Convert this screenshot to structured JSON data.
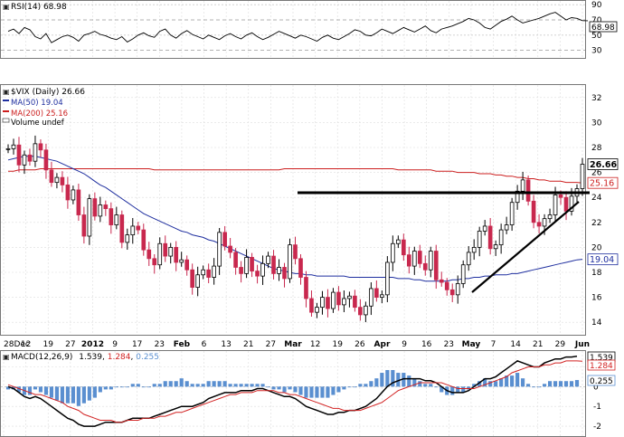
{
  "rsi": {
    "label": "RSI(14) 68.98",
    "last": 68.98,
    "ticks": [
      "90",
      "70",
      "50",
      "30"
    ],
    "tick_values": [
      90,
      70,
      50,
      30
    ],
    "last_badge": "68.98"
  },
  "price": {
    "legend_title": "$VIX (Daily) 26.66",
    "legend_ma50": "MA(50) 19.04",
    "legend_ma200": "MA(200) 25.16",
    "legend_volume": "Volume undef",
    "ticks": [
      "32",
      "30",
      "28",
      "26",
      "24",
      "22",
      "20",
      "18",
      "16",
      "14"
    ],
    "tick_values": [
      32,
      30,
      28,
      26,
      24,
      22,
      20,
      18,
      16,
      14
    ],
    "badges": [
      {
        "text": "26.66",
        "value": 26.66,
        "style": "last"
      },
      {
        "text": "25.16",
        "value": 25.16,
        "style": "ma200"
      },
      {
        "text": "19.04",
        "value": 19.04,
        "style": "ma50"
      }
    ]
  },
  "macd": {
    "label": "MACD(12,26,9)",
    "macd_value": "1.539",
    "signal_value": "1.284",
    "hist_value": "0.255",
    "ticks": [
      "1",
      "0",
      "-1",
      "-2"
    ],
    "tick_values": [
      1,
      0,
      -1,
      -2
    ],
    "badges": [
      {
        "text": "1.539",
        "value": 1.539
      },
      {
        "text": "1.284",
        "value": 1.284
      },
      {
        "text": "0.255",
        "value": 0.255
      }
    ]
  },
  "x_axis": {
    "labels": [
      "28Dec",
      "12",
      "19",
      "27",
      "2012",
      "9",
      "17",
      "23",
      "Feb",
      "6",
      "13",
      "21",
      "27",
      "Mar",
      "12",
      "19",
      "26",
      "Apr",
      "9",
      "16",
      "23",
      "May",
      "7",
      "14",
      "21",
      "29",
      "Jun"
    ],
    "bold": [
      "2012",
      "Feb",
      "Mar",
      "Apr",
      "May",
      "Jun"
    ]
  },
  "colors": {
    "up": "#000000",
    "down": "#c8284e",
    "ma50": "#1f2f9f",
    "ma200": "#cc1f1f",
    "hist": "#5a8fd0",
    "macd": "#000000",
    "signal": "#d22222",
    "grid": "#dddddd"
  },
  "chart_data": [
    {
      "type": "line",
      "title": "RSI(14) 68.98",
      "ylim": [
        20,
        95
      ],
      "series": [
        {
          "name": "RSI(14)",
          "values": [
            55,
            58,
            52,
            60,
            57,
            48,
            45,
            52,
            40,
            44,
            48,
            50,
            47,
            42,
            50,
            52,
            55,
            51,
            49,
            46,
            44,
            48,
            41,
            45,
            50,
            53,
            49,
            47,
            55,
            58,
            50,
            46,
            52,
            56,
            51,
            48,
            45,
            50,
            47,
            44,
            49,
            52,
            48,
            45,
            50,
            53,
            48,
            44,
            47,
            51,
            55,
            52,
            49,
            46,
            50,
            48,
            45,
            42,
            47,
            50,
            46,
            44,
            48,
            52,
            57,
            55,
            50,
            49,
            53,
            58,
            55,
            52,
            56,
            60,
            57,
            54,
            58,
            62,
            56,
            53,
            58,
            60,
            62,
            65,
            68,
            72,
            70,
            66,
            60,
            58,
            63,
            68,
            71,
            75,
            70,
            66,
            68,
            70,
            72,
            75,
            78,
            80,
            75,
            70,
            73,
            72,
            69,
            68.98
          ]
        }
      ]
    },
    {
      "type": "line",
      "title": "$VIX (Daily) 26.66",
      "ylim": [
        13,
        33
      ],
      "series": [
        {
          "name": "$VIX (Daily)",
          "values": [
            27.9,
            28.2,
            26.6,
            27.4,
            26.9,
            28.3,
            27.8,
            26.2,
            25.2,
            25.6,
            25.0,
            23.8,
            24.6,
            22.6,
            20.9,
            23.9,
            22.5,
            23.4,
            23.1,
            21.8,
            22.6,
            20.4,
            21.0,
            21.7,
            21.4,
            19.8,
            19.1,
            18.6,
            20.3,
            19.3,
            20.0,
            18.8,
            19.0,
            18.2,
            16.8,
            17.8,
            18.2,
            17.6,
            18.5,
            21.2,
            20.1,
            19.6,
            18.4,
            17.9,
            19.2,
            18.1,
            17.7,
            18.7,
            19.3,
            17.9,
            18.4,
            17.5,
            20.2,
            19.1,
            17.6,
            15.9,
            14.8,
            15.2,
            16.0,
            15.1,
            16.4,
            15.4,
            15.9,
            16.1,
            15.2,
            14.6,
            15.3,
            16.7,
            16.0,
            16.2,
            18.8,
            20.3,
            20.6,
            19.4,
            18.5,
            19.7,
            18.7,
            18.2,
            19.7,
            17.4,
            17.2,
            16.6,
            16.2,
            17.1,
            18.6,
            19.6,
            20.0,
            21.3,
            21.7,
            19.9,
            20.2,
            21.4,
            21.8,
            23.6,
            24.5,
            25.4,
            23.7,
            22.0,
            21.7,
            22.3,
            22.6,
            24.2,
            24.0,
            22.9,
            24.1,
            24.7,
            26.66
          ]
        },
        {
          "name": "MA(50)",
          "values": [
            27.0,
            27.1,
            27.2,
            27.3,
            27.3,
            27.3,
            27.2,
            27.1,
            27.0,
            26.9,
            26.7,
            26.5,
            26.3,
            26.1,
            25.9,
            25.6,
            25.3,
            25.0,
            24.8,
            24.5,
            24.2,
            23.9,
            23.6,
            23.3,
            23.0,
            22.7,
            22.5,
            22.3,
            22.1,
            21.9,
            21.7,
            21.5,
            21.3,
            21.2,
            21.0,
            20.9,
            20.8,
            20.6,
            20.5,
            20.3,
            20.1,
            19.9,
            19.7,
            19.5,
            19.3,
            19.1,
            18.9,
            18.7,
            18.5,
            18.3,
            18.2,
            18.1,
            18.0,
            17.9,
            17.9,
            17.8,
            17.8,
            17.7,
            17.7,
            17.7,
            17.7,
            17.7,
            17.7,
            17.6,
            17.6,
            17.6,
            17.6,
            17.6,
            17.6,
            17.6,
            17.6,
            17.6,
            17.5,
            17.5,
            17.5,
            17.4,
            17.4,
            17.3,
            17.3,
            17.3,
            17.3,
            17.3,
            17.4,
            17.4,
            17.5,
            17.5,
            17.6,
            17.6,
            17.7,
            17.7,
            17.8,
            17.8,
            17.8,
            17.9,
            17.9,
            18.0,
            18.1,
            18.2,
            18.3,
            18.4,
            18.5,
            18.6,
            18.7,
            18.8,
            18.9,
            19.0,
            19.04
          ]
        },
        {
          "name": "MA(200)",
          "values": [
            26.1,
            26.1,
            26.2,
            26.2,
            26.2,
            26.2,
            26.3,
            26.3,
            26.3,
            26.3,
            26.3,
            26.3,
            26.3,
            26.3,
            26.3,
            26.3,
            26.3,
            26.3,
            26.3,
            26.3,
            26.3,
            26.3,
            26.3,
            26.3,
            26.3,
            26.3,
            26.3,
            26.2,
            26.2,
            26.2,
            26.2,
            26.2,
            26.2,
            26.2,
            26.2,
            26.2,
            26.2,
            26.2,
            26.2,
            26.2,
            26.2,
            26.2,
            26.2,
            26.2,
            26.2,
            26.2,
            26.2,
            26.2,
            26.2,
            26.2,
            26.2,
            26.3,
            26.3,
            26.3,
            26.3,
            26.3,
            26.3,
            26.3,
            26.3,
            26.3,
            26.3,
            26.3,
            26.3,
            26.3,
            26.3,
            26.3,
            26.3,
            26.3,
            26.3,
            26.3,
            26.3,
            26.3,
            26.2,
            26.2,
            26.2,
            26.2,
            26.2,
            26.2,
            26.2,
            26.1,
            26.1,
            26.1,
            26.1,
            26.0,
            26.0,
            26.0,
            26.0,
            25.9,
            25.9,
            25.9,
            25.8,
            25.8,
            25.7,
            25.7,
            25.6,
            25.6,
            25.5,
            25.5,
            25.4,
            25.4,
            25.3,
            25.3,
            25.3,
            25.2,
            25.2,
            25.2,
            25.16
          ]
        }
      ]
    },
    {
      "type": "line",
      "title": "MACD(12,26,9)",
      "ylim": [
        -2.5,
        1.8
      ],
      "series": [
        {
          "name": "MACD",
          "values": [
            0.0,
            -0.1,
            -0.3,
            -0.5,
            -0.6,
            -0.5,
            -0.6,
            -0.8,
            -1.0,
            -1.2,
            -1.4,
            -1.6,
            -1.7,
            -1.9,
            -2.0,
            -2.0,
            -2.0,
            -1.9,
            -1.8,
            -1.8,
            -1.8,
            -1.8,
            -1.7,
            -1.6,
            -1.6,
            -1.6,
            -1.6,
            -1.5,
            -1.4,
            -1.3,
            -1.2,
            -1.1,
            -1.0,
            -1.0,
            -1.0,
            -0.9,
            -0.8,
            -0.6,
            -0.5,
            -0.4,
            -0.3,
            -0.3,
            -0.3,
            -0.2,
            -0.2,
            -0.2,
            -0.1,
            -0.1,
            -0.2,
            -0.3,
            -0.4,
            -0.5,
            -0.5,
            -0.6,
            -0.8,
            -1.0,
            -1.1,
            -1.2,
            -1.3,
            -1.4,
            -1.4,
            -1.3,
            -1.3,
            -1.2,
            -1.2,
            -1.1,
            -1.0,
            -0.8,
            -0.6,
            -0.3,
            0.0,
            0.2,
            0.3,
            0.4,
            0.4,
            0.4,
            0.4,
            0.3,
            0.3,
            0.2,
            0.0,
            -0.2,
            -0.3,
            -0.3,
            -0.3,
            -0.2,
            0.0,
            0.2,
            0.4,
            0.4,
            0.5,
            0.7,
            0.9,
            1.1,
            1.3,
            1.2,
            1.1,
            1.0,
            1.0,
            1.2,
            1.3,
            1.4,
            1.4,
            1.5,
            1.5,
            1.539
          ]
        },
        {
          "name": "Signal",
          "values": [
            0.1,
            0.0,
            -0.1,
            -0.2,
            -0.3,
            -0.4,
            -0.4,
            -0.5,
            -0.6,
            -0.7,
            -0.8,
            -1.0,
            -1.1,
            -1.2,
            -1.4,
            -1.5,
            -1.6,
            -1.7,
            -1.7,
            -1.7,
            -1.8,
            -1.8,
            -1.7,
            -1.7,
            -1.7,
            -1.6,
            -1.6,
            -1.6,
            -1.5,
            -1.5,
            -1.4,
            -1.3,
            -1.3,
            -1.2,
            -1.1,
            -1.0,
            -0.9,
            -0.8,
            -0.7,
            -0.6,
            -0.5,
            -0.4,
            -0.4,
            -0.3,
            -0.3,
            -0.3,
            -0.2,
            -0.2,
            -0.2,
            -0.2,
            -0.3,
            -0.3,
            -0.4,
            -0.4,
            -0.5,
            -0.6,
            -0.7,
            -0.8,
            -0.9,
            -1.0,
            -1.1,
            -1.1,
            -1.2,
            -1.2,
            -1.2,
            -1.2,
            -1.1,
            -1.0,
            -0.9,
            -0.8,
            -0.6,
            -0.4,
            -0.2,
            -0.1,
            0.0,
            0.1,
            0.2,
            0.2,
            0.2,
            0.2,
            0.2,
            0.1,
            0.0,
            -0.1,
            -0.1,
            -0.1,
            -0.1,
            0.0,
            0.1,
            0.2,
            0.3,
            0.4,
            0.5,
            0.7,
            0.8,
            0.9,
            1.0,
            1.0,
            1.0,
            1.1,
            1.1,
            1.2,
            1.2,
            1.3,
            1.3,
            1.3,
            1.284
          ]
        }
      ]
    }
  ]
}
